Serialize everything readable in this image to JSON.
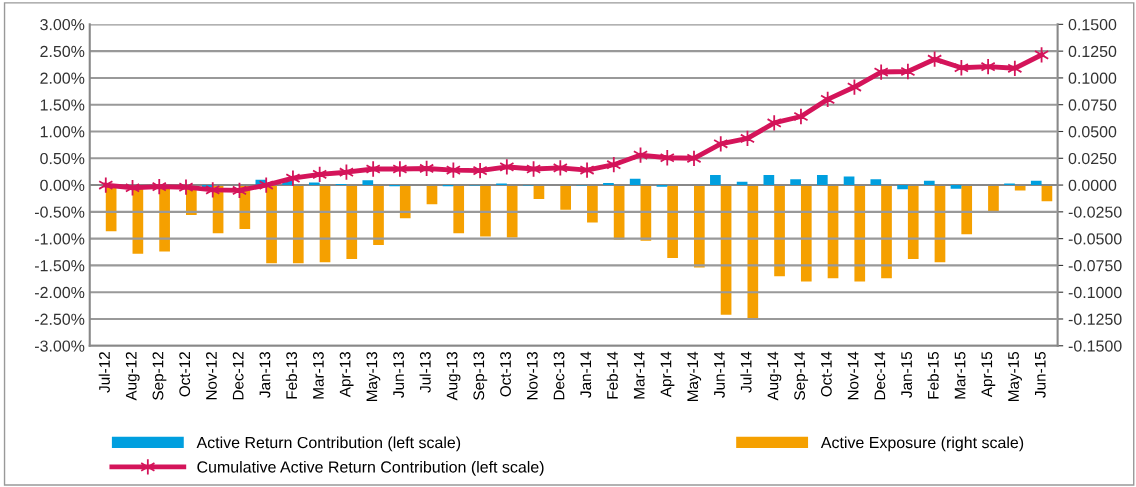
{
  "chart_data": {
    "type": "bar",
    "categories": [
      "Jul-12",
      "Aug-12",
      "Sep-12",
      "Oct-12",
      "Nov-12",
      "Dec-12",
      "Jan-13",
      "Feb-13",
      "Mar-13",
      "Apr-13",
      "May-13",
      "Jun-13",
      "Jul-13",
      "Aug-13",
      "Sep-13",
      "Oct-13",
      "Nov-13",
      "Dec-13",
      "Jan-14",
      "Feb-14",
      "Mar-14",
      "Apr-14",
      "May-14",
      "Jun-14",
      "Jul-14",
      "Aug-14",
      "Sep-14",
      "Oct-14",
      "Nov-14",
      "Dec-14",
      "Jan-15",
      "Feb-15",
      "Mar-15",
      "Apr-15",
      "May-15",
      "Jun-15"
    ],
    "series": [
      {
        "name": "Active Return Contribution (left scale)",
        "color": "#009fdf",
        "values": [
          0.0,
          null,
          null,
          0.0,
          -0.05,
          0.0,
          0.1,
          0.08,
          0.05,
          0.02,
          0.09,
          -0.02,
          0.0,
          -0.02,
          -0.01,
          0.03,
          -0.01,
          0.0,
          -0.01,
          0.04,
          0.12,
          -0.03,
          0.0,
          0.19,
          0.06,
          0.19,
          0.11,
          0.19,
          0.16,
          0.11,
          -0.08,
          0.08,
          -0.07,
          0.0,
          0.03,
          0.08
        ]
      },
      {
        "name": "Active Exposure (right scale)",
        "axis": "y2",
        "color": "#f5a000",
        "values": [
          -0.043,
          -0.064,
          -0.062,
          -0.028,
          -0.045,
          -0.041,
          -0.073,
          -0.073,
          -0.072,
          -0.069,
          -0.056,
          -0.031,
          -0.018,
          -0.045,
          -0.048,
          -0.049,
          -0.013,
          -0.023,
          -0.035,
          -0.051,
          -0.052,
          -0.068,
          -0.077,
          -0.121,
          -0.124,
          -0.085,
          -0.09,
          -0.087,
          -0.09,
          -0.087,
          -0.069,
          -0.072,
          -0.046,
          -0.026,
          -0.005,
          -0.015
        ]
      },
      {
        "name": "Cumulative Active Return Contribution (left scale)",
        "type": "line",
        "marker": "cross",
        "color": "#d4145a",
        "values": [
          0.0,
          -0.05,
          -0.03,
          -0.04,
          -0.09,
          -0.1,
          0.0,
          0.13,
          0.2,
          0.24,
          0.3,
          0.3,
          0.31,
          0.28,
          0.27,
          0.34,
          0.3,
          0.32,
          0.28,
          0.38,
          0.56,
          0.51,
          0.5,
          0.77,
          0.87,
          1.16,
          1.28,
          1.6,
          1.83,
          2.11,
          2.12,
          2.35,
          2.19,
          2.21,
          2.18,
          2.43
        ]
      }
    ],
    "ylim": [
      -3,
      3
    ],
    "yticks": [
      {
        "value": 3,
        "label": "3.00%"
      },
      {
        "value": 2.5,
        "label": "2.50%"
      },
      {
        "value": 2,
        "label": "2.00%"
      },
      {
        "value": 1.5,
        "label": "1.50%"
      },
      {
        "value": 1,
        "label": "1.00%"
      },
      {
        "value": 0.5,
        "label": "0.50%"
      },
      {
        "value": 0,
        "label": "0.00%"
      },
      {
        "value": -0.5,
        "label": "-0.50%"
      },
      {
        "value": -1,
        "label": "-1.00%"
      },
      {
        "value": -1.5,
        "label": "-1.50%"
      },
      {
        "value": -2,
        "label": "-2.00%"
      },
      {
        "value": -2.5,
        "label": "-2.50%"
      },
      {
        "value": -3,
        "label": "-3.00%"
      }
    ],
    "y2lim": [
      -0.15,
      0.15
    ],
    "y2ticks": [
      {
        "value": 0.15,
        "label": "0.1500"
      },
      {
        "value": 0.125,
        "label": "0.1250"
      },
      {
        "value": 0.1,
        "label": "0.1000"
      },
      {
        "value": 0.075,
        "label": "0.0750"
      },
      {
        "value": 0.05,
        "label": "0.0500"
      },
      {
        "value": 0.025,
        "label": "0.0250"
      },
      {
        "value": 0,
        "label": "0.0000"
      },
      {
        "value": -0.025,
        "label": "-0.0250"
      },
      {
        "value": -0.05,
        "label": "-0.0500"
      },
      {
        "value": -0.075,
        "label": "-0.0750"
      },
      {
        "value": -0.1,
        "label": "-0.1000"
      },
      {
        "value": -0.125,
        "label": "-0.1250"
      },
      {
        "value": -0.15,
        "label": "-0.1500"
      }
    ],
    "grid": "y",
    "legend": "bottom"
  }
}
